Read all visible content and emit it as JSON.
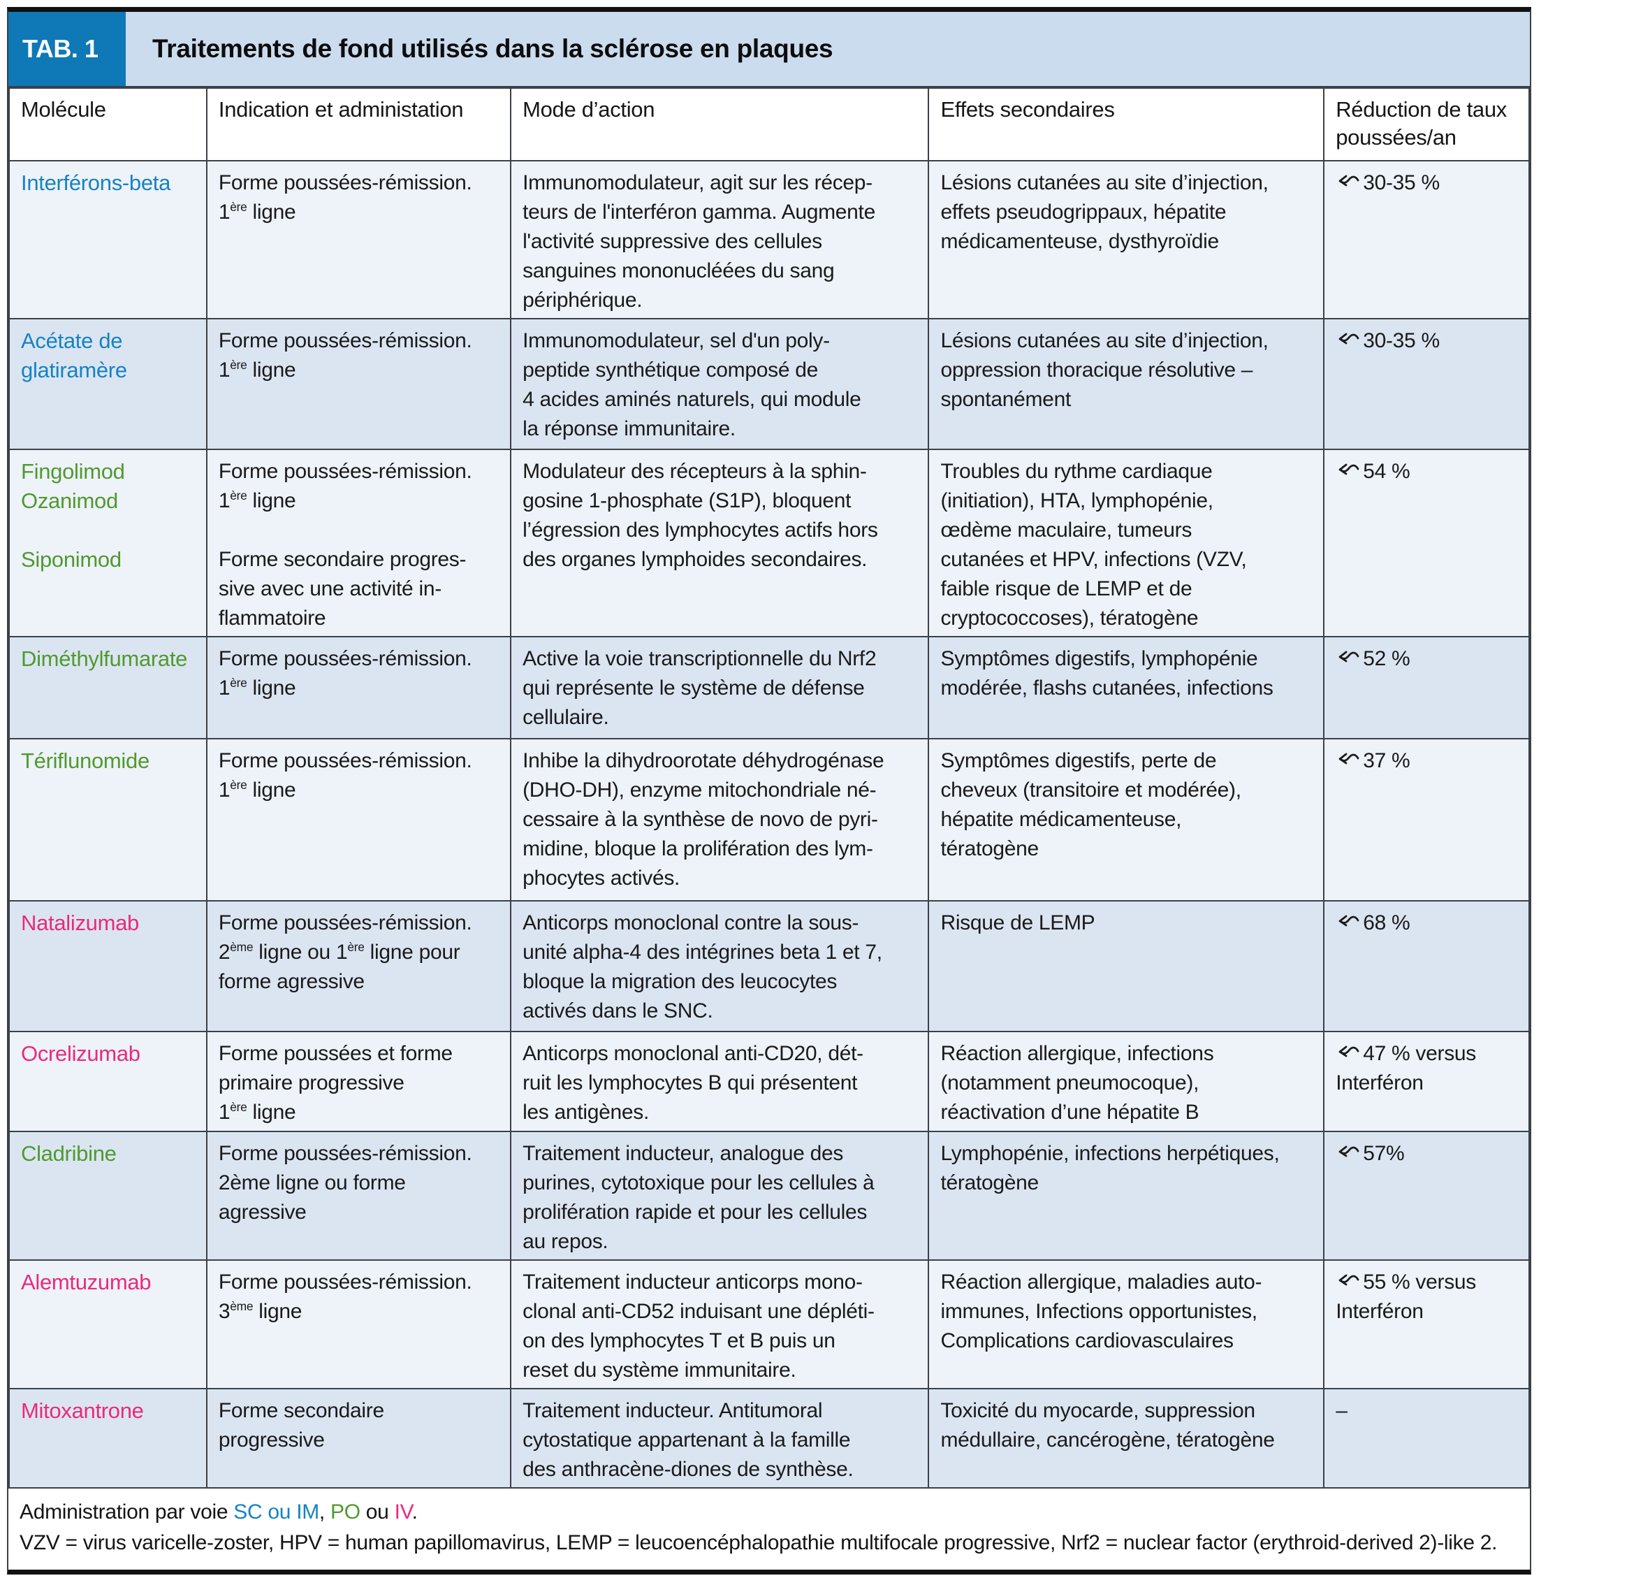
{
  "meta": {
    "tab_label": "TAB. 1",
    "title": "Traitements de fond utilisés dans la sclérose en plaques"
  },
  "colors": {
    "blue": "#1583c1",
    "green": "#4f9a2e",
    "pink": "#e92a7c",
    "tab_bg": "#0f78b6",
    "strip_bg": "#cbdcee",
    "row_light": "#eef2f9",
    "row_dark": "#dbe5f2"
  },
  "columns": [
    "Molécule",
    "Indication et administation",
    "Mode d’action",
    "Effets secondaires",
    "Réduction de taux poussées/an"
  ],
  "rows": [
    {
      "color": "blue",
      "molecule": [
        {
          "t": "Interférons-beta"
        }
      ],
      "indication": [
        {
          "t": "Forme poussées-rémission."
        },
        {
          "br": true
        },
        {
          "t": "1"
        },
        {
          "t": "ère",
          "sup": true
        },
        {
          "t": " ligne"
        }
      ],
      "mode": [
        {
          "t": "Immunomodulateur, agit sur les récep-"
        },
        {
          "br": true
        },
        {
          "t": "teurs de l'interféron gamma. Augmente"
        },
        {
          "br": true
        },
        {
          "t": "l'activité suppressive des cellules"
        },
        {
          "br": true
        },
        {
          "t": "sanguines mononucléées du sang"
        },
        {
          "br": true
        },
        {
          "t": "périphérique."
        }
      ],
      "effects": [
        {
          "t": "Lésions cutanées au site d’injection,"
        },
        {
          "br": true
        },
        {
          "t": "effets pseudogrippaux, hépatite"
        },
        {
          "br": true
        },
        {
          "t": "médicamenteuse, dysthyroïdie"
        }
      ],
      "reduction": {
        "approx": true,
        "runs": [
          {
            "t": "30-35 %"
          }
        ]
      }
    },
    {
      "color": "blue",
      "molecule": [
        {
          "t": "Acétate de"
        },
        {
          "br": true
        },
        {
          "t": "glatiramère"
        }
      ],
      "indication": [
        {
          "t": "Forme poussées-rémission."
        },
        {
          "br": true
        },
        {
          "t": "1"
        },
        {
          "t": "ère",
          "sup": true
        },
        {
          "t": " ligne"
        }
      ],
      "mode": [
        {
          "t": "Immunomodulateur, sel d'un poly-"
        },
        {
          "br": true
        },
        {
          "t": "peptide synthétique composé de"
        },
        {
          "br": true
        },
        {
          "t": "4 acides aminés naturels, qui module"
        },
        {
          "br": true
        },
        {
          "t": "la réponse immunitaire."
        }
      ],
      "effects": [
        {
          "t": "Lésions cutanées au site d’injection,"
        },
        {
          "br": true
        },
        {
          "t": "oppression thoracique résolutive –"
        },
        {
          "br": true
        },
        {
          "t": "spontanément"
        }
      ],
      "reduction": {
        "approx": true,
        "runs": [
          {
            "t": "30-35 %"
          }
        ]
      }
    },
    {
      "color": "green",
      "molecule": [
        {
          "t": "Fingolimod"
        },
        {
          "br": true
        },
        {
          "t": "Ozanimod"
        },
        {
          "br": true
        },
        {
          "br": true
        },
        {
          "t": "Siponimod"
        }
      ],
      "indication": [
        {
          "t": "Forme poussées-rémission."
        },
        {
          "br": true
        },
        {
          "t": "1"
        },
        {
          "t": "ère",
          "sup": true
        },
        {
          "t": " ligne"
        },
        {
          "br": true
        },
        {
          "br": true
        },
        {
          "t": "Forme secondaire progres-"
        },
        {
          "br": true
        },
        {
          "t": "sive avec une activité in-"
        },
        {
          "br": true
        },
        {
          "t": "flammatoire"
        }
      ],
      "mode": [
        {
          "t": "Modulateur des récepteurs à la sphin-"
        },
        {
          "br": true
        },
        {
          "t": "gosine 1-phosphate (S1P), bloquent"
        },
        {
          "br": true
        },
        {
          "t": "l’égression des lymphocytes actifs hors"
        },
        {
          "br": true
        },
        {
          "t": "des organes lymphoides secondaires."
        }
      ],
      "effects": [
        {
          "t": "Troubles du rythme cardiaque"
        },
        {
          "br": true
        },
        {
          "t": "(initiation), HTA, lymphopénie,"
        },
        {
          "br": true
        },
        {
          "t": "œdème maculaire, tumeurs"
        },
        {
          "br": true
        },
        {
          "t": "cutanées et HPV, infections (VZV,"
        },
        {
          "br": true
        },
        {
          "t": "faible risque de LEMP et de"
        },
        {
          "br": true
        },
        {
          "t": "cryptococcoses), tératogène"
        }
      ],
      "reduction": {
        "approx": true,
        "runs": [
          {
            "t": "54 %"
          }
        ]
      }
    },
    {
      "color": "green",
      "molecule": [
        {
          "t": "Diméthylfumarate"
        }
      ],
      "indication": [
        {
          "t": "Forme poussées-rémission."
        },
        {
          "br": true
        },
        {
          "t": "1"
        },
        {
          "t": "ère",
          "sup": true
        },
        {
          "t": " ligne"
        }
      ],
      "mode": [
        {
          "t": "Active la voie transcriptionnelle du Nrf2"
        },
        {
          "br": true
        },
        {
          "t": "qui représente le système de défense"
        },
        {
          "br": true
        },
        {
          "t": "cellulaire."
        }
      ],
      "effects": [
        {
          "t": "Symptômes digestifs, lymphopénie"
        },
        {
          "br": true
        },
        {
          "t": "modérée, flashs cutanées, infections"
        }
      ],
      "reduction": {
        "approx": true,
        "runs": [
          {
            "t": "52 %"
          }
        ]
      }
    },
    {
      "color": "green",
      "molecule": [
        {
          "t": "Tériflunomide"
        }
      ],
      "indication": [
        {
          "t": "Forme poussées-rémission."
        },
        {
          "br": true
        },
        {
          "t": "1"
        },
        {
          "t": "ère",
          "sup": true
        },
        {
          "t": " ligne"
        }
      ],
      "mode": [
        {
          "t": "Inhibe la dihydroorotate déhydrogénase"
        },
        {
          "br": true
        },
        {
          "t": "(DHO-DH), enzyme mitochondriale né-"
        },
        {
          "br": true
        },
        {
          "t": "cessaire à la synthèse de novo de pyri-"
        },
        {
          "br": true
        },
        {
          "t": "midine, bloque la prolifération des lym-"
        },
        {
          "br": true
        },
        {
          "t": "phocytes activés."
        }
      ],
      "effects": [
        {
          "t": "Symptômes digestifs, perte de"
        },
        {
          "br": true
        },
        {
          "t": "cheveux (transitoire et modérée),"
        },
        {
          "br": true
        },
        {
          "t": "hépatite médicamenteuse,"
        },
        {
          "br": true
        },
        {
          "t": "tératogène"
        }
      ],
      "reduction": {
        "approx": true,
        "runs": [
          {
            "t": "37 %"
          }
        ]
      }
    },
    {
      "color": "pink",
      "molecule": [
        {
          "t": "Natalizumab"
        }
      ],
      "indication": [
        {
          "t": "Forme poussées-rémission."
        },
        {
          "br": true
        },
        {
          "t": "2"
        },
        {
          "t": "ème",
          "sup": true
        },
        {
          "t": " ligne ou 1"
        },
        {
          "t": "ère",
          "sup": true
        },
        {
          "t": " ligne pour"
        },
        {
          "br": true
        },
        {
          "t": "forme agressive"
        }
      ],
      "mode": [
        {
          "t": "Anticorps monoclonal contre la sous-"
        },
        {
          "br": true
        },
        {
          "t": "unité alpha-4 des intégrines beta 1 et 7,"
        },
        {
          "br": true
        },
        {
          "t": "bloque la migration des leucocytes"
        },
        {
          "br": true
        },
        {
          "t": "activés dans le SNC."
        }
      ],
      "effects": [
        {
          "t": "Risque de LEMP"
        }
      ],
      "reduction": {
        "approx": true,
        "runs": [
          {
            "t": "68 %"
          }
        ]
      }
    },
    {
      "color": "pink",
      "molecule": [
        {
          "t": "Ocrelizumab"
        }
      ],
      "indication": [
        {
          "t": "Forme poussées et forme"
        },
        {
          "br": true
        },
        {
          "t": "primaire progressive"
        },
        {
          "br": true
        },
        {
          "t": "1"
        },
        {
          "t": "ère",
          "sup": true
        },
        {
          "t": " ligne"
        }
      ],
      "mode": [
        {
          "t": "Anticorps monoclonal anti-CD20, dét-"
        },
        {
          "br": true
        },
        {
          "t": "ruit les lymphocytes B qui présentent"
        },
        {
          "br": true
        },
        {
          "t": "les antigènes."
        }
      ],
      "effects": [
        {
          "t": "Réaction allergique, infections"
        },
        {
          "br": true
        },
        {
          "t": "(notamment pneumocoque),"
        },
        {
          "br": true
        },
        {
          "t": "réactivation d’une hépatite B"
        }
      ],
      "reduction": {
        "approx": true,
        "runs": [
          {
            "t": "47 % versus"
          },
          {
            "br": true
          },
          {
            "t": "Interféron"
          }
        ]
      }
    },
    {
      "color": "green",
      "molecule": [
        {
          "t": "Cladribine"
        }
      ],
      "indication": [
        {
          "t": "Forme poussées-rémission."
        },
        {
          "br": true
        },
        {
          "t": "2ème ligne ou forme"
        },
        {
          "br": true
        },
        {
          "t": "agressive"
        }
      ],
      "mode": [
        {
          "t": "Traitement inducteur, analogue des"
        },
        {
          "br": true
        },
        {
          "t": "purines, cytotoxique pour les cellules à"
        },
        {
          "br": true
        },
        {
          "t": "prolifération rapide et pour les cellules"
        },
        {
          "br": true
        },
        {
          "t": "au repos."
        }
      ],
      "effects": [
        {
          "t": "Lymphopénie, infections herpétiques,"
        },
        {
          "br": true
        },
        {
          "t": "tératogène"
        }
      ],
      "reduction": {
        "approx": true,
        "runs": [
          {
            "t": "57%"
          }
        ]
      }
    },
    {
      "color": "pink",
      "molecule": [
        {
          "t": "Alemtuzumab"
        }
      ],
      "indication": [
        {
          "t": "Forme poussées-rémission."
        },
        {
          "br": true
        },
        {
          "t": "3"
        },
        {
          "t": "ème",
          "sup": true
        },
        {
          "t": " ligne"
        }
      ],
      "mode": [
        {
          "t": "Traitement inducteur anticorps mono-"
        },
        {
          "br": true
        },
        {
          "t": "clonal anti-CD52 induisant une dépléti-"
        },
        {
          "br": true
        },
        {
          "t": "on des lymphocytes T et B puis un"
        },
        {
          "br": true
        },
        {
          "t": "reset du système immunitaire."
        }
      ],
      "effects": [
        {
          "t": "Réaction allergique, maladies auto-"
        },
        {
          "br": true
        },
        {
          "t": "immunes, Infections opportunistes,"
        },
        {
          "br": true
        },
        {
          "t": "Complications cardiovasculaires"
        }
      ],
      "reduction": {
        "approx": true,
        "runs": [
          {
            "t": "55 % versus"
          },
          {
            "br": true
          },
          {
            "t": "Interféron"
          }
        ]
      }
    },
    {
      "color": "pink",
      "molecule": [
        {
          "t": "Mitoxantrone"
        }
      ],
      "indication": [
        {
          "t": "Forme secondaire"
        },
        {
          "br": true
        },
        {
          "t": "progressive"
        }
      ],
      "mode": [
        {
          "t": "Traitement inducteur. Antitumoral"
        },
        {
          "br": true
        },
        {
          "t": "cytostatique appartenant à la famille"
        },
        {
          "br": true
        },
        {
          "t": "des anthracène-diones de synthèse."
        }
      ],
      "effects": [
        {
          "t": "Toxicité du myocarde, suppression"
        },
        {
          "br": true
        },
        {
          "t": "médullaire, cancérogène, tératogène"
        }
      ],
      "reduction": {
        "approx": false,
        "runs": [
          {
            "t": "–"
          }
        ]
      }
    }
  ],
  "footnotes": {
    "administration_runs": [
      {
        "t": "Administration par voie "
      },
      {
        "t": "SC ou IM",
        "c": "blue"
      },
      {
        "t": ", "
      },
      {
        "t": "PO",
        "c": "green"
      },
      {
        "t": " ou "
      },
      {
        "t": "IV",
        "c": "pink"
      },
      {
        "t": "."
      }
    ],
    "abbreviations": "VZV = virus varicelle-zoster, HPV = human papillomavirus, LEMP = leucoencéphalopathie multifocale progressive, Nrf2 = nuclear factor (erythroid-derived 2)-like 2."
  }
}
